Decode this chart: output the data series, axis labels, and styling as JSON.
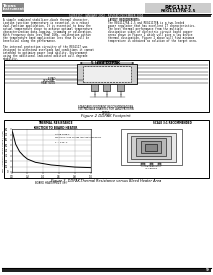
{
  "bg_color": "#ffffff",
  "page_num": "9",
  "part_number_line1": "REG1117",
  "part_number_line2": "REG1117FA-2.5",
  "doc_id": "SLVS315C - JANUARY 2002 - REVISED DECEMBER 2004",
  "left_col_text": [
    "A simple combined stabilizer-diode thermal character-",
    "ization junction temperature is essential in a robust",
    "dual-function application. It is essential to know the",
    "actual temperature above to achieve optimal temperature",
    "characterization data-logging, trimming or calibration.",
    "With frequency data less than 1GHz, calibration within",
    "the temperature band application less than 0s will be",
    "beneficial along the performance.",
    "",
    "The internal protection circuitry of the REG1117 was",
    "designed to withstand overloads and conditions it cannot",
    "intended to optimize power load ability. Environment",
    "using the additional indicated additive will degrade",
    "stability."
  ],
  "right_col_text": [
    "LAYOUT REQUIREMENTS:",
    "The REG1117FA-2.5 and REG1117FA is a two-leaded",
    "power regulator that has excellent IT characteristics.",
    "The best thermal performance from the multiple",
    "dissipative sides of dielectric circuit board copper",
    "areas shown in Figure 2 which will give a low device",
    "thermal dissipation. Figure 2 above will find minimum",
    "temperature is obtained as solution of the target area."
  ],
  "fig2_caption": "Figure 2 DDPAK Footprint",
  "fig2_label": "5 lead D2PAK",
  "fig2_sublabel": "STANDARD FOOTPRINT RECOMMENDATIONS",
  "fig2_sublabel2": "SEE PACKAGE DRAWING FOR LAND PATTERN",
  "fig3_caption": "Figure 3. DDPAK-Thermal Resistance versus Bleed Heater Area",
  "graph_title_line1": "THERMAL RESISTANCE",
  "graph_title_line2": "JUNCTION TO BOARD HEATER",
  "graph_xlabel": "BOARD HEATER SIZE (in²)",
  "graph_ylabel": "θJB - THERMAL RESISTANCE (°C/W)",
  "graph_note_line1": "CASE SIZE T",
  "graph_note_line2": "SEE TABLE A FOR COPPER AREA MEASUREMENTS",
  "graph_note_line3": "T = 125°C",
  "graph_xdata": [
    0.01,
    0.05,
    0.1,
    0.15,
    0.2,
    0.3,
    0.5,
    0.8,
    1.0
  ],
  "graph_ydata": [
    75,
    52,
    38,
    30,
    24,
    18,
    13,
    9,
    8
  ],
  "graph_xticks": [
    0,
    0.2,
    0.4,
    0.6,
    0.8,
    1.0
  ],
  "graph_yticks": [
    0,
    10,
    20,
    30,
    40,
    50,
    60,
    70,
    80
  ],
  "pkg_view_label": "HEAT SLUG\nIN CENTER",
  "pkg_view_title": "SCALE 3:1 RECOMMENDED",
  "footer_bar_color": "#222222",
  "header_gray": "#888888",
  "pkg_gray_outer": "#cccccc",
  "pkg_gray_inner": "#eeeeee",
  "pin_gray": "#aaaaaa"
}
